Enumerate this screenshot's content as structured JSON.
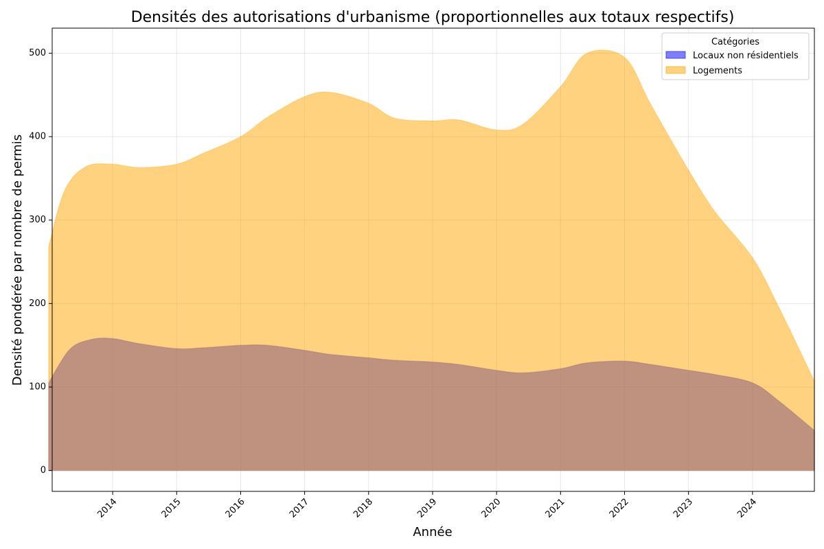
{
  "chart_data": {
    "type": "area",
    "title": "Densités des autorisations d'urbanisme (proportionnelles aux totaux respectifs)",
    "xlabel": "Année",
    "ylabel": "Densité pondérée par nombre de permis",
    "x_ticks": [
      "2014",
      "2015",
      "2016",
      "2017",
      "2018",
      "2019",
      "2020",
      "2021",
      "2022",
      "2023",
      "2024"
    ],
    "y_ticks": [
      0,
      100,
      200,
      300,
      400,
      500
    ],
    "xlim": [
      "2013-01-21",
      "2024-12-20"
    ],
    "ylim": [
      -25,
      530
    ],
    "grid": true,
    "legend": {
      "title": "Catégories",
      "position": "top-right"
    },
    "series": [
      {
        "name": "Locaux non résidentiels",
        "color": "#0000ff",
        "opacity": 0.5,
        "points": [
          [
            "2013-01-01",
            105
          ],
          [
            "2013-05-01",
            145
          ],
          [
            "2013-09-01",
            157
          ],
          [
            "2014-01-01",
            158
          ],
          [
            "2014-06-01",
            152
          ],
          [
            "2015-01-01",
            146
          ],
          [
            "2015-06-01",
            147
          ],
          [
            "2016-01-01",
            150
          ],
          [
            "2016-06-01",
            150
          ],
          [
            "2017-01-01",
            144
          ],
          [
            "2017-06-01",
            139
          ],
          [
            "2018-01-01",
            135
          ],
          [
            "2018-06-01",
            132
          ],
          [
            "2019-01-01",
            130
          ],
          [
            "2019-06-01",
            127
          ],
          [
            "2020-01-01",
            120
          ],
          [
            "2020-06-01",
            117
          ],
          [
            "2021-01-01",
            122
          ],
          [
            "2021-06-01",
            129
          ],
          [
            "2022-01-01",
            131
          ],
          [
            "2022-06-01",
            127
          ],
          [
            "2023-01-01",
            120
          ],
          [
            "2023-06-01",
            115
          ],
          [
            "2024-01-01",
            105
          ],
          [
            "2024-06-01",
            83
          ],
          [
            "2024-12-20",
            48
          ]
        ]
      },
      {
        "name": "Logements",
        "color": "#ffa500",
        "opacity": 0.5,
        "points": [
          [
            "2013-01-01",
            268
          ],
          [
            "2013-04-01",
            335
          ],
          [
            "2013-08-01",
            364
          ],
          [
            "2014-01-01",
            367
          ],
          [
            "2014-06-01",
            363
          ],
          [
            "2015-01-01",
            367
          ],
          [
            "2015-06-01",
            380
          ],
          [
            "2016-01-01",
            400
          ],
          [
            "2016-06-01",
            423
          ],
          [
            "2017-01-01",
            448
          ],
          [
            "2017-06-01",
            453
          ],
          [
            "2018-01-01",
            440
          ],
          [
            "2018-06-01",
            422
          ],
          [
            "2019-01-01",
            419
          ],
          [
            "2019-06-01",
            420
          ],
          [
            "2020-01-01",
            408
          ],
          [
            "2020-06-01",
            415
          ],
          [
            "2021-01-01",
            460
          ],
          [
            "2021-06-01",
            500
          ],
          [
            "2022-01-01",
            495
          ],
          [
            "2022-06-01",
            438
          ],
          [
            "2023-01-01",
            360
          ],
          [
            "2023-06-01",
            310
          ],
          [
            "2024-01-01",
            255
          ],
          [
            "2024-06-01",
            195
          ],
          [
            "2024-12-20",
            107
          ]
        ]
      }
    ]
  }
}
